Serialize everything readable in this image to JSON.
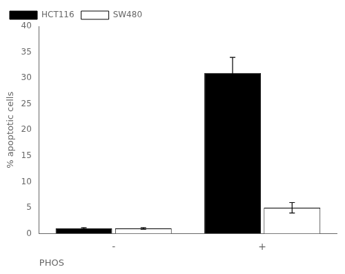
{
  "chart_data": {
    "type": "bar",
    "categories": [
      "-",
      "+"
    ],
    "series": [
      {
        "name": "HCT116",
        "color": "#000000",
        "values": [
          1.0,
          31.0
        ],
        "errors": [
          0.15,
          3.0
        ]
      },
      {
        "name": "SW480",
        "color": "#ffffff",
        "values": [
          1.0,
          5.0
        ],
        "errors": [
          0.15,
          1.0
        ]
      }
    ],
    "xlabel": "PHOS",
    "ylabel": "% apoptotic cells",
    "ylim": [
      0,
      40
    ],
    "yticks": [
      0,
      5,
      10,
      15,
      20,
      25,
      30,
      35,
      40
    ],
    "grid": false,
    "legend": "upper left"
  }
}
